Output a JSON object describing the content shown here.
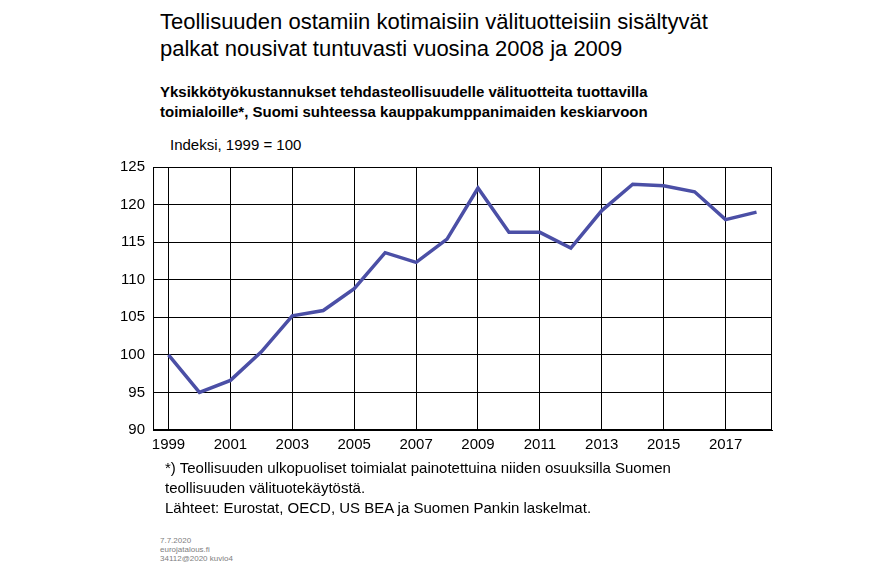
{
  "chart_data": {
    "type": "line",
    "title": [
      "Teollisuuden ostamiin kotimaisiin välituotteisiin sisältyvät",
      "palkat nousivat tuntuvasti vuosina 2008 ja 2009"
    ],
    "subtitle": [
      "Yksikkötyökustannukset tehdasteollisuudelle välituotteita tuottavilla",
      "toimialoille*, Suomi suhteessa kauppakumppanimaiden keskiarvoon"
    ],
    "y_label": "Indeksi, 1999 = 100",
    "notes": [
      "*) Teollisuuden ulkopuoliset toimialat painotettuina niiden osuuksilla Suomen",
      "teollisuuden välituotekäytöstä.",
      "Lähteet: Eurostat, OECD, US BEA ja Suomen Pankin laskelmat."
    ],
    "footer": [
      "7.7.2020",
      "eurojatalous.fi",
      "34112@2020  kuvio4"
    ],
    "categories": [
      "1999",
      null,
      "2001",
      null,
      "2003",
      null,
      "2005",
      null,
      "2007",
      null,
      "2009",
      null,
      "2011",
      null,
      "2013",
      null,
      "2015",
      null,
      "2017",
      null
    ],
    "values": [
      100,
      95,
      96.6,
      100.4,
      105.2,
      105.9,
      108.8,
      113.6,
      112.3,
      115.4,
      122.2,
      116.3,
      116.3,
      114.2,
      119.2,
      122.7,
      122.5,
      121.7,
      118.0,
      119.0
    ],
    "color": "#4b4fa6",
    "ylim": [
      90,
      125
    ],
    "yticks": [
      90,
      95,
      100,
      105,
      110,
      115,
      120,
      125
    ],
    "grid": true
  }
}
